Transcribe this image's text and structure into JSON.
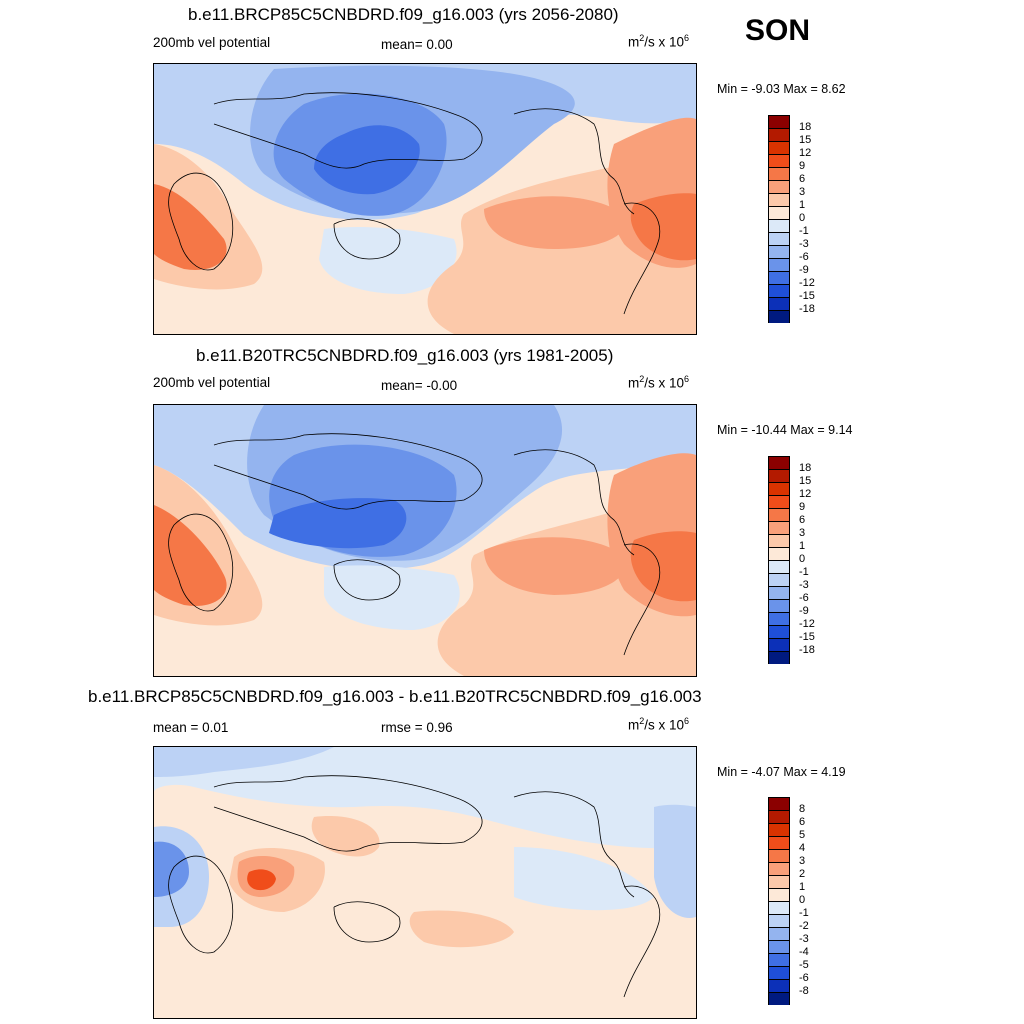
{
  "season": "SON",
  "panels": [
    {
      "title": "b.e11.BRCP85C5CNBDRD.f09_g16.003 (yrs 2056-2080)",
      "left_label": "200mb vel potential",
      "center_label": "mean=   0.00",
      "units_base": "m",
      "units_sup": "2",
      "units_mid": "/s x 10",
      "units_exp": "6",
      "minmax": "Min =  -9.03 Max =   8.62",
      "colorbar_levels": [
        "18",
        "15",
        "12",
        "9",
        "6",
        "3",
        "1",
        "0",
        "-1",
        "-3",
        "-6",
        "-9",
        "-12",
        "-15",
        "-18"
      ],
      "colorbar_colors": [
        "#8b0000",
        "#b31a00",
        "#d93300",
        "#f04d1a",
        "#f57747",
        "#f9a07a",
        "#fcc9aa",
        "#fde9d8",
        "#dce9f8",
        "#bcd2f5",
        "#94b4ef",
        "#6a93ea",
        "#3f6fe4",
        "#1f4fd8",
        "#0c30b8",
        "#001a80"
      ]
    },
    {
      "title": "b.e11.B20TRC5CNBDRD.f09_g16.003 (yrs 1981-2005)",
      "left_label": "200mb vel potential",
      "center_label": "mean=  -0.00",
      "units_base": "m",
      "units_sup": "2",
      "units_mid": "/s x 10",
      "units_exp": "6",
      "minmax": "Min = -10.44 Max =   9.14",
      "colorbar_levels": [
        "18",
        "15",
        "12",
        "9",
        "6",
        "3",
        "1",
        "0",
        "-1",
        "-3",
        "-6",
        "-9",
        "-12",
        "-15",
        "-18"
      ],
      "colorbar_colors": [
        "#8b0000",
        "#b31a00",
        "#d93300",
        "#f04d1a",
        "#f57747",
        "#f9a07a",
        "#fcc9aa",
        "#fde9d8",
        "#dce9f8",
        "#bcd2f5",
        "#94b4ef",
        "#6a93ea",
        "#3f6fe4",
        "#1f4fd8",
        "#0c30b8",
        "#001a80"
      ]
    },
    {
      "title": "b.e11.BRCP85C5CNBDRD.f09_g16.003 - b.e11.B20TRC5CNBDRD.f09_g16.003",
      "left_label": "mean =   0.01",
      "center_label": "rmse =   0.96",
      "units_base": "m",
      "units_sup": "2",
      "units_mid": "/s x 10",
      "units_exp": "6",
      "minmax": "Min =  -4.07 Max =   4.19",
      "colorbar_levels": [
        "8",
        "6",
        "5",
        "4",
        "3",
        "2",
        "1",
        "0",
        "-1",
        "-2",
        "-3",
        "-4",
        "-5",
        "-6",
        "-8"
      ],
      "colorbar_colors": [
        "#8b0000",
        "#b31a00",
        "#d93300",
        "#f04d1a",
        "#f57747",
        "#f9a07a",
        "#fcc9aa",
        "#fde9d8",
        "#dce9f8",
        "#bcd2f5",
        "#94b4ef",
        "#6a93ea",
        "#3f6fe4",
        "#1f4fd8",
        "#0c30b8",
        "#001a80"
      ]
    }
  ]
}
